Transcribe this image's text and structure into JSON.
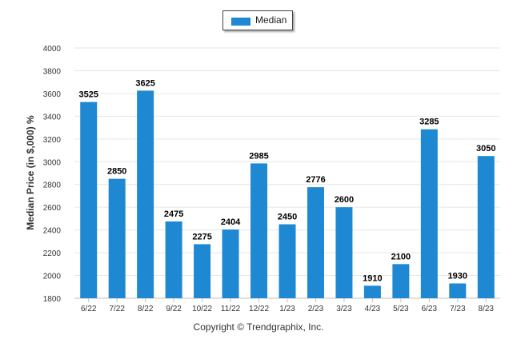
{
  "chart_data": {
    "type": "bar",
    "categories": [
      "6/22",
      "7/22",
      "8/22",
      "9/22",
      "10/22",
      "11/22",
      "12/22",
      "1/23",
      "2/23",
      "3/23",
      "4/23",
      "5/23",
      "6/23",
      "7/23",
      "8/23"
    ],
    "series": [
      {
        "name": "Median",
        "values": [
          3525,
          2850,
          3625,
          2475,
          2275,
          2404,
          2985,
          2450,
          2776,
          2600,
          1910,
          2100,
          3285,
          1930,
          3050
        ]
      }
    ],
    "data_labels": [
      "3525",
      "2850",
      "3625",
      "2475",
      "2275",
      "2404",
      "2985",
      "2450",
      "2776",
      "2600",
      "1910",
      "2100",
      "3285",
      "1930",
      "3050"
    ],
    "ylabel": "Median Price (in $,000) %",
    "xlabel": "",
    "ylim": [
      1800,
      4000
    ],
    "yticks": [
      1800,
      2000,
      2200,
      2400,
      2600,
      2800,
      3000,
      3200,
      3400,
      3600,
      3800,
      4000
    ],
    "grid": true,
    "legend_position": "top-center",
    "bar_color": "#1e88d2"
  },
  "footer": "Copyright © Trendgraphix, Inc."
}
